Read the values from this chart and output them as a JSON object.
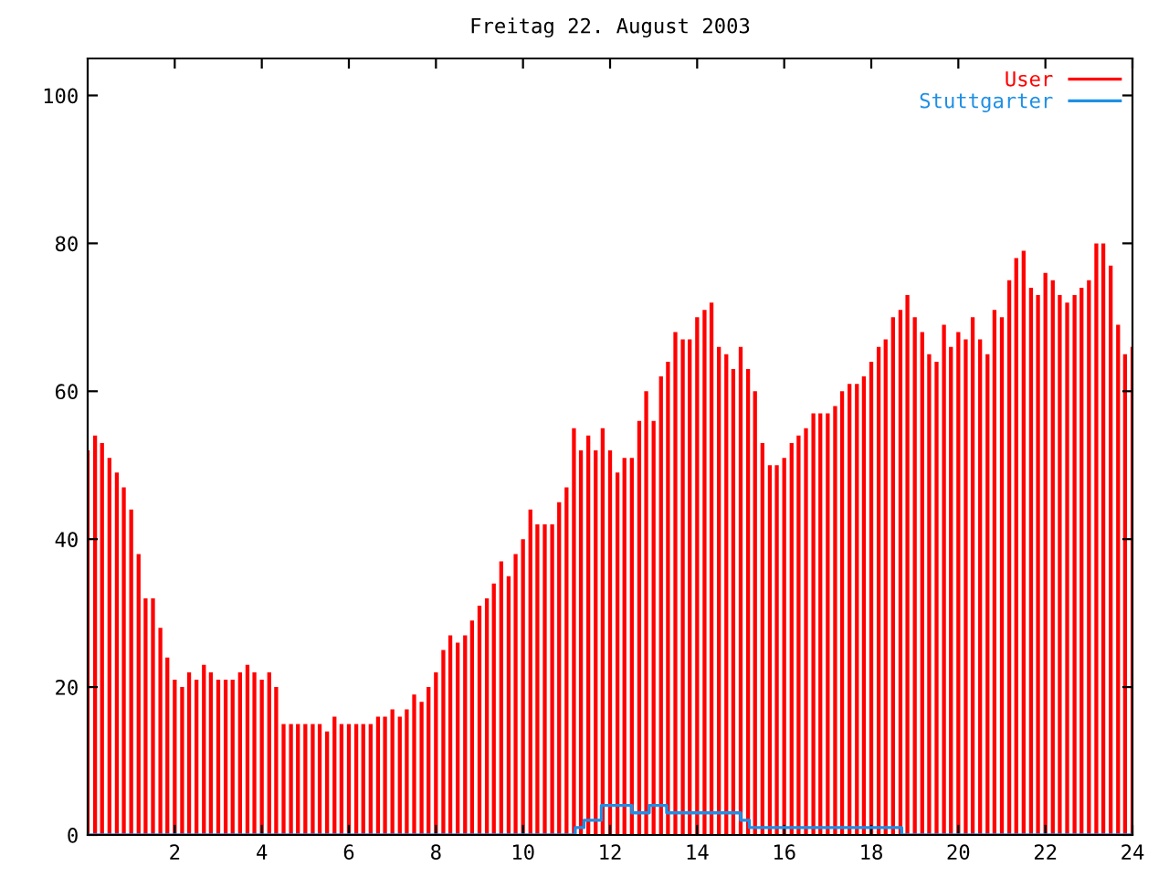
{
  "chart_data": {
    "type": "bar",
    "title": "Freitag 22. August 2003",
    "xlim": [
      0,
      24
    ],
    "xticks": [
      2,
      4,
      6,
      8,
      10,
      12,
      14,
      16,
      18,
      20,
      22,
      24
    ],
    "ylim": [
      0,
      105
    ],
    "yticks": [
      0,
      20,
      40,
      60,
      80,
      100
    ],
    "grid": false,
    "legend": "top right",
    "series": [
      {
        "name": "User",
        "color": "#ff0000",
        "x": [
          0,
          0.17,
          0.33,
          0.5,
          0.67,
          0.83,
          1,
          1.17,
          1.33,
          1.5,
          1.67,
          1.83,
          2,
          2.17,
          2.33,
          2.5,
          2.67,
          2.83,
          3,
          3.17,
          3.33,
          3.5,
          3.67,
          3.83,
          4,
          4.17,
          4.33,
          4.5,
          4.67,
          4.83,
          5,
          5.17,
          5.33,
          5.5,
          5.67,
          5.83,
          6,
          6.17,
          6.33,
          6.5,
          6.67,
          6.83,
          7,
          7.17,
          7.33,
          7.5,
          7.67,
          7.83,
          8,
          8.17,
          8.33,
          8.5,
          8.67,
          8.83,
          9,
          9.17,
          9.33,
          9.5,
          9.67,
          9.83,
          10,
          10.17,
          10.33,
          10.5,
          10.67,
          10.83,
          11,
          11.17,
          11.33,
          11.5,
          11.67,
          11.83,
          12,
          12.17,
          12.33,
          12.5,
          12.67,
          12.83,
          13,
          13.17,
          13.33,
          13.5,
          13.67,
          13.83,
          14,
          14.17,
          14.33,
          14.5,
          14.67,
          14.83,
          15,
          15.17,
          15.33,
          15.5,
          15.67,
          15.83,
          16,
          16.17,
          16.33,
          16.5,
          16.67,
          16.83,
          17,
          17.17,
          17.33,
          17.5,
          17.67,
          17.83,
          18,
          18.17,
          18.33,
          18.5,
          18.67,
          18.83,
          19,
          19.17,
          19.33,
          19.5,
          19.67,
          19.83,
          20,
          20.17,
          20.33,
          20.5,
          20.67,
          20.83,
          21,
          21.17,
          21.33,
          21.5,
          21.67,
          21.83,
          22,
          22.17,
          22.33,
          22.5,
          22.67,
          22.83,
          23,
          23.17,
          23.33,
          23.5,
          23.67,
          23.83,
          24
        ],
        "values": [
          52,
          54,
          53,
          51,
          49,
          47,
          44,
          38,
          32,
          32,
          28,
          24,
          21,
          20,
          22,
          21,
          23,
          22,
          21,
          21,
          21,
          22,
          23,
          22,
          21,
          22,
          20,
          15,
          15,
          15,
          15,
          15,
          15,
          14,
          16,
          15,
          15,
          15,
          15,
          15,
          16,
          16,
          17,
          16,
          17,
          19,
          18,
          20,
          22,
          25,
          27,
          26,
          27,
          29,
          31,
          32,
          34,
          37,
          35,
          38,
          40,
          44,
          42,
          42,
          42,
          45,
          47,
          55,
          52,
          54,
          52,
          55,
          52,
          49,
          51,
          51,
          56,
          60,
          56,
          62,
          64,
          68,
          67,
          67,
          70,
          71,
          72,
          66,
          65,
          63,
          66,
          63,
          60,
          53,
          50,
          50,
          51,
          53,
          54,
          55,
          57,
          57,
          57,
          58,
          60,
          61,
          61,
          62,
          64,
          66,
          67,
          70,
          71,
          73,
          70,
          68,
          65,
          64,
          69,
          66,
          68,
          67,
          70,
          67,
          65,
          71,
          70,
          75,
          78,
          79,
          74,
          73,
          76,
          75,
          73,
          72,
          73,
          74,
          75,
          80,
          80,
          77,
          69,
          65,
          66
        ]
      },
      {
        "name": "Stuttgarter",
        "color": "#1f8fe5",
        "type": "step",
        "x": [
          0,
          11.2,
          11.4,
          11.8,
          12.5,
          12.9,
          13.3,
          15.0,
          15.2,
          18.7,
          24
        ],
        "values": [
          0,
          1,
          2,
          4,
          3,
          4,
          3,
          2,
          1,
          0,
          0
        ]
      }
    ]
  }
}
